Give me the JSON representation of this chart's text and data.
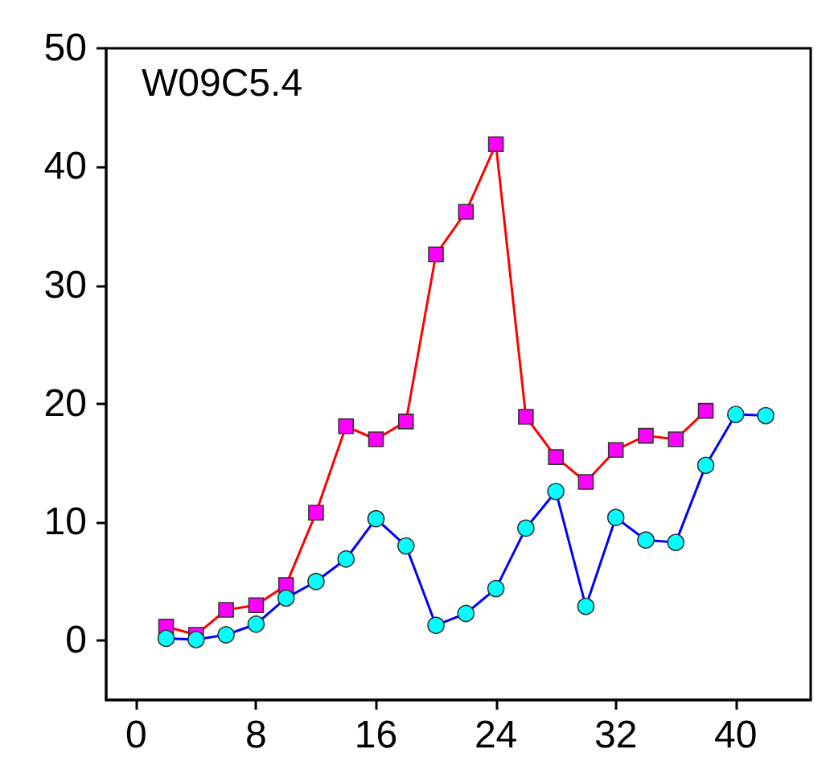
{
  "chart_data": {
    "type": "line",
    "annotations": [
      "W09C5.4"
    ],
    "xlim": [
      -2,
      45
    ],
    "xticks": [
      0,
      8,
      16,
      24,
      32,
      40
    ],
    "ylim": [
      -5,
      50
    ],
    "yticks": [
      0,
      10,
      20,
      30,
      40,
      50
    ],
    "grid": false,
    "series": [
      {
        "color": "#ff0000",
        "marker": "square",
        "colors": [
          "#ff00ff",
          "#ff00ff",
          "#ff00ff",
          "#ff00ff",
          "#ff00ff",
          "#ff00ff",
          "#ff00ff",
          "#ff00ff",
          "#ff00ff",
          "#ff00ff",
          "#ff00ff",
          "#ff00ff",
          "#ff00ff",
          "#ff00ff",
          "#ff00ff",
          "#ff00ff",
          "#ff00ff",
          "#ff00ff",
          "#ff00ff"
        ],
        "x": [
          2,
          4,
          6,
          8,
          10,
          12,
          14,
          16,
          18,
          20,
          22,
          24,
          26,
          28,
          30,
          32,
          34,
          36,
          38
        ],
        "values": [
          1.2,
          0.5,
          2.6,
          3.0,
          4.7,
          10.8,
          18.1,
          17.0,
          18.5,
          32.6,
          36.2,
          41.9,
          18.9,
          15.5,
          13.4,
          16.1,
          17.3,
          17.0,
          19.4
        ]
      },
      {
        "color": "#0000ff",
        "marker": "circle",
        "colors": [
          "#00ffff",
          "#00ffff",
          "#00ffff",
          "#00ffff",
          "#00ffff",
          "#00ffff",
          "#00ffff",
          "#00ffff",
          "#00ffff",
          "#00ffff",
          "#00ffff",
          "#00ffff",
          "#00ffff",
          "#00ffff",
          "#00ffff",
          "#00ffff",
          "#00ffff",
          "#00ffff",
          "#00ffff",
          "#00ffff",
          "#00ffff"
        ],
        "x": [
          2,
          4,
          6,
          8,
          10,
          12,
          14,
          16,
          18,
          20,
          22,
          24,
          26,
          28,
          30,
          32,
          34,
          36,
          38,
          40,
          42
        ],
        "values": [
          0.2,
          0.1,
          0.5,
          1.4,
          3.6,
          5.0,
          6.9,
          10.3,
          8.0,
          1.3,
          2.3,
          4.4,
          9.5,
          12.6,
          2.9,
          10.4,
          8.5,
          8.3,
          14.8,
          19.1,
          19.0
        ]
      }
    ]
  }
}
